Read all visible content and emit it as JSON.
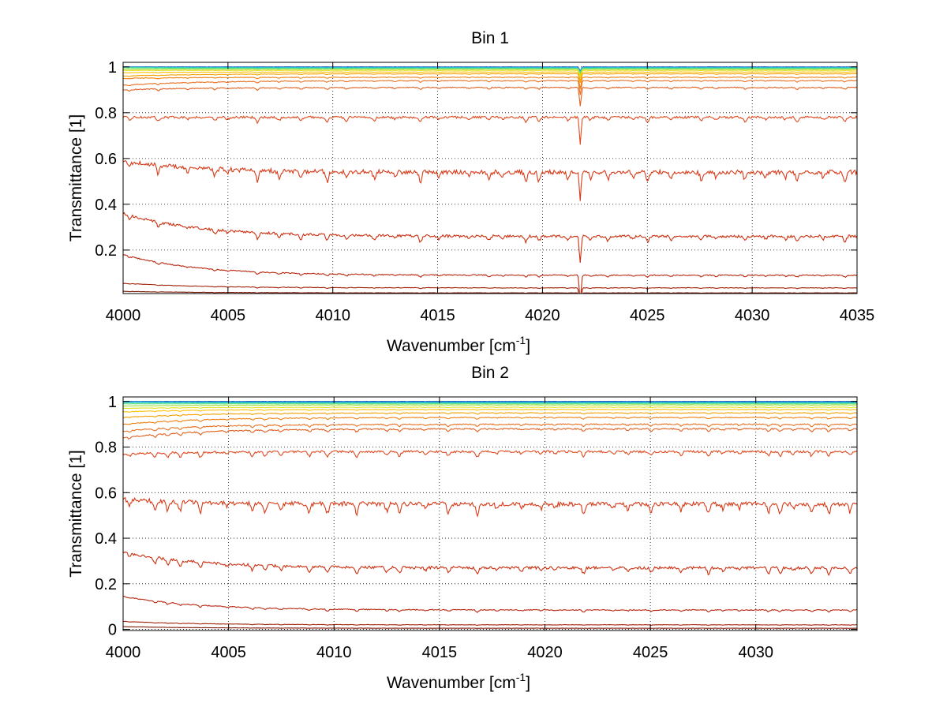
{
  "chart_data": [
    {
      "type": "line",
      "title": "Bin 1",
      "xlabel": "Wavenumber [cm",
      "xlabel_sup": "-1",
      "xlabel_close": "]",
      "ylabel": "Transmittance [1]",
      "xlim": [
        4000,
        4035
      ],
      "ylim": [
        0.01,
        1.02
      ],
      "grid": true,
      "xticks": [
        4000,
        4005,
        4010,
        4015,
        4020,
        4025,
        4030,
        4035
      ],
      "yticks": [
        0.2,
        0.4,
        0.6,
        0.8,
        1
      ],
      "xtick_labels": [
        "4000",
        "4005",
        "4010",
        "4015",
        "4020",
        "4025",
        "4030",
        "4035"
      ],
      "ytick_labels": [
        "0.2",
        "0.4",
        "0.6",
        "0.8",
        "1"
      ],
      "feature": {
        "x": 4021.8,
        "depth_scale": 0.12
      },
      "series": [
        {
          "color": "#0a2a8a",
          "start": 1.0,
          "level": 1.0
        },
        {
          "color": "#1060d0",
          "start": 1.0,
          "level": 0.999
        },
        {
          "color": "#1aa0e0",
          "start": 0.999,
          "level": 0.998
        },
        {
          "color": "#30d0c0",
          "start": 0.998,
          "level": 0.996
        },
        {
          "color": "#60e080",
          "start": 0.996,
          "level": 0.993
        },
        {
          "color": "#a0e040",
          "start": 0.99,
          "level": 0.99
        },
        {
          "color": "#e0e020",
          "start": 0.985,
          "level": 0.985
        },
        {
          "color": "#ffc000",
          "start": 0.975,
          "level": 0.978
        },
        {
          "color": "#f5a000",
          "start": 0.96,
          "level": 0.97
        },
        {
          "color": "#f08010",
          "start": 0.95,
          "level": 0.955
        },
        {
          "color": "#e87020",
          "start": 0.92,
          "level": 0.94
        },
        {
          "color": "#e06020",
          "start": 0.9,
          "level": 0.91
        },
        {
          "color": "#e04a20",
          "start": 0.78,
          "level": 0.78
        },
        {
          "color": "#d83a18",
          "start": 0.59,
          "level": 0.54
        },
        {
          "color": "#cc3010",
          "start": 0.36,
          "level": 0.26
        },
        {
          "color": "#b82810",
          "start": 0.18,
          "level": 0.09
        },
        {
          "color": "#a02008",
          "start": 0.055,
          "level": 0.035
        },
        {
          "color": "#801808",
          "start": 0.02,
          "level": 0.013
        }
      ]
    },
    {
      "type": "line",
      "title": "Bin 2",
      "xlabel": "Wavenumber [cm",
      "xlabel_sup": "-1",
      "xlabel_close": "]",
      "ylabel": "Transmittance [1]",
      "xlim": [
        4000,
        4034.8
      ],
      "ylim": [
        -0.005,
        1.02
      ],
      "grid": true,
      "xticks": [
        4000,
        4005,
        4010,
        4015,
        4020,
        4025,
        4030
      ],
      "yticks": [
        0,
        0.2,
        0.4,
        0.6,
        0.8,
        1
      ],
      "xtick_labels": [
        "4000",
        "4005",
        "4010",
        "4015",
        "4020",
        "4025",
        "4030"
      ],
      "ytick_labels": [
        "0",
        "0.2",
        "0.4",
        "0.6",
        "0.8",
        "1"
      ],
      "feature": null,
      "series": [
        {
          "color": "#0a2a8a",
          "start": 1.0,
          "level": 1.0
        },
        {
          "color": "#1060d0",
          "start": 1.0,
          "level": 0.999
        },
        {
          "color": "#1aa0e0",
          "start": 0.999,
          "level": 0.997
        },
        {
          "color": "#30d0c0",
          "start": 0.995,
          "level": 0.994
        },
        {
          "color": "#60e080",
          "start": 0.99,
          "level": 0.99
        },
        {
          "color": "#a0e040",
          "start": 0.98,
          "level": 0.985
        },
        {
          "color": "#e0e020",
          "start": 0.97,
          "level": 0.975
        },
        {
          "color": "#ffc000",
          "start": 0.955,
          "level": 0.965
        },
        {
          "color": "#f5a000",
          "start": 0.93,
          "level": 0.95
        },
        {
          "color": "#f08010",
          "start": 0.9,
          "level": 0.93
        },
        {
          "color": "#e87020",
          "start": 0.87,
          "level": 0.9
        },
        {
          "color": "#e06020",
          "start": 0.84,
          "level": 0.88
        },
        {
          "color": "#e04a20",
          "start": 0.77,
          "level": 0.78
        },
        {
          "color": "#d83a18",
          "start": 0.57,
          "level": 0.55
        },
        {
          "color": "#cc3010",
          "start": 0.34,
          "level": 0.27
        },
        {
          "color": "#b82810",
          "start": 0.145,
          "level": 0.085
        },
        {
          "color": "#a02008",
          "start": 0.035,
          "level": 0.02
        },
        {
          "color": "#801808",
          "start": 0.012,
          "level": 0.005
        }
      ]
    }
  ]
}
